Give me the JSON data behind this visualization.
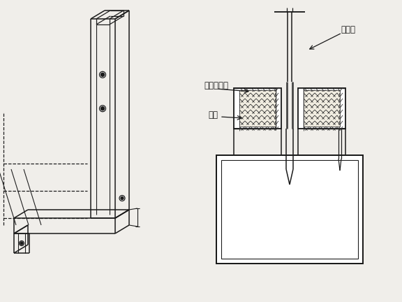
{
  "bg_color": "#f0eeea",
  "line_color": "#1a1a1a",
  "label_jin": "金属压条槽",
  "label_mu": "木条",
  "label_bo": "玻璃板",
  "fig_width": 5.76,
  "fig_height": 4.32,
  "dpi": 100
}
